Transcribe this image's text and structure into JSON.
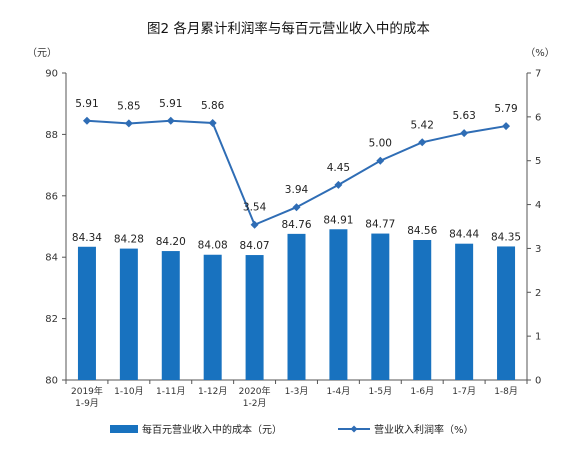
{
  "colors": {
    "bar": "#1872BF",
    "line": "#2F6DB5",
    "axis": "#555555",
    "text": "#222222"
  },
  "chart_data": {
    "type": "bar",
    "title": "图2 各月累计利润率与每百元营业收入中的成本",
    "y_left_unit": "（元）",
    "y_right_unit": "（%）",
    "ylim_left": [
      80,
      90
    ],
    "yticks_left": [
      80,
      82,
      84,
      86,
      88,
      90
    ],
    "ylim_right": [
      0,
      7
    ],
    "yticks_right": [
      0,
      1,
      2,
      3,
      4,
      5,
      6,
      7
    ],
    "grid": false,
    "legend_position": "bottom",
    "categories": [
      [
        "2019年",
        "1-9月"
      ],
      [
        "1-10月"
      ],
      [
        "1-11月"
      ],
      [
        "1-12月"
      ],
      [
        "2020年",
        "1-2月"
      ],
      [
        "1-3月"
      ],
      [
        "1-4月"
      ],
      [
        "1-5月"
      ],
      [
        "1-6月"
      ],
      [
        "1-7月"
      ],
      [
        "1-8月"
      ]
    ],
    "series": [
      {
        "name": "每百元营业收入中的成本（元）",
        "type": "bar",
        "axis": "left",
        "values": [
          84.34,
          84.28,
          84.2,
          84.08,
          84.07,
          84.76,
          84.91,
          84.77,
          84.56,
          84.44,
          84.35
        ],
        "labels": [
          "84.34",
          "84.28",
          "84.20",
          "84.08",
          "84.07",
          "84.76",
          "84.91",
          "84.77",
          "84.56",
          "84.44",
          "84.35"
        ]
      },
      {
        "name": "营业收入利润率（%）",
        "type": "line",
        "axis": "right",
        "values": [
          5.91,
          5.85,
          5.91,
          5.86,
          3.54,
          3.94,
          4.45,
          5.0,
          5.42,
          5.63,
          5.79
        ],
        "labels": [
          "5.91",
          "5.85",
          "5.91",
          "5.86",
          "3.54",
          "3.94",
          "4.45",
          "5.00",
          "5.42",
          "5.63",
          "5.79"
        ]
      }
    ]
  }
}
